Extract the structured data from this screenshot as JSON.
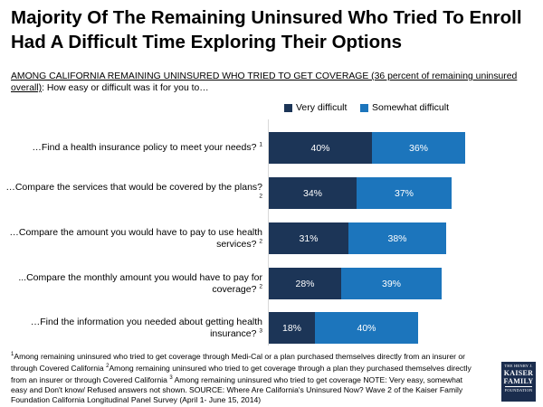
{
  "title": "Majority Of The Remaining Uninsured Who Tried To Enroll Had A Difficult Time Exploring Their Options",
  "subtitle": {
    "underlined": "AMONG CALIFORNIA REMAINING UNINSURED WHO TRIED TO GET COVERAGE (36 percent of remaining uninsured overall)",
    "rest": ": How easy or difficult was it for you to…"
  },
  "colors": {
    "very_difficult": "#1c3557",
    "somewhat_difficult": "#1c75bc"
  },
  "chart_data": {
    "type": "bar",
    "orientation": "horizontal",
    "stacked": true,
    "categories": [
      "…Find a health insurance policy to meet your needs?",
      "…Compare the services that would be covered by the plans?",
      "…Compare the amount you would have to pay to use health services?",
      "...Compare the monthly amount you would have to pay for coverage?",
      "…Find the information you needed about getting health insurance?"
    ],
    "category_superscripts": [
      "1",
      "2",
      "2",
      "2",
      "3"
    ],
    "series": [
      {
        "name": "Very difficult",
        "values": [
          40,
          34,
          31,
          28,
          18
        ],
        "labels": [
          "40%",
          "34%",
          "31%",
          "28%",
          "18%"
        ]
      },
      {
        "name": "Somewhat difficult",
        "values": [
          36,
          37,
          38,
          39,
          40
        ],
        "labels": [
          "36%",
          "37%",
          "38%",
          "39%",
          "40%"
        ]
      }
    ],
    "xlim": [
      0,
      100
    ],
    "legend_position": "top"
  },
  "footnote": {
    "sup1": "1",
    "text1": "Among remaining uninsured who tried to get coverage through Medi-Cal or a plan purchased themselves directly from an insurer or through Covered California",
    "sup2": "2",
    "text2": "Among remaining uninsured who tried to get coverage through a plan they purchased themselves directly from an insurer or through Covered California",
    "sup3": "3",
    "text3": " Among remaining uninsured who tried to get coverage NOTE: Very easy, somewhat easy and Don't know/ Refused answers not shown. SOURCE: Where Are California's Uninsured Now? Wave 2 of the Kaiser Family Foundation California Longitudinal Panel Survey (April 1- June 15, 2014)"
  },
  "logo": {
    "top": "THE HENRY J.",
    "line1": "KAISER",
    "line2": "FAMILY",
    "bottom": "FOUNDATION"
  }
}
